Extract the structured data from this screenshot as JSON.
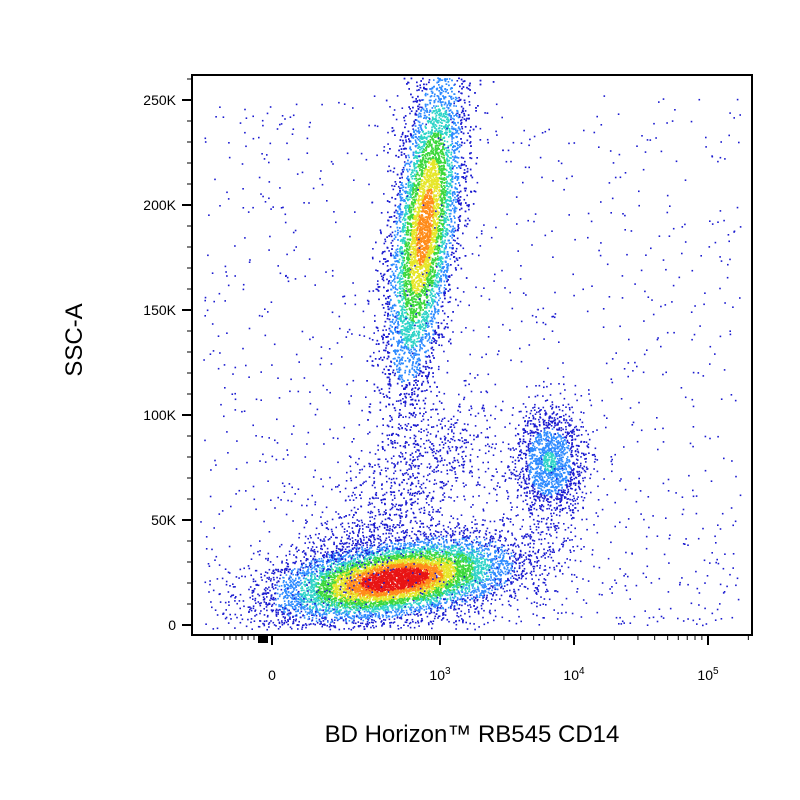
{
  "chart_data": {
    "type": "scatter",
    "style": "density-pseudocolor",
    "xlabel": "BD Horizon™ RB545  CD14",
    "ylabel": "SSC-A",
    "x_scale": "biexponential",
    "ylim": [
      0,
      262144
    ],
    "y_ticks": [
      {
        "value": 0,
        "label": "0"
      },
      {
        "value": 50000,
        "label": "50K"
      },
      {
        "value": 100000,
        "label": "100K"
      },
      {
        "value": 150000,
        "label": "150K"
      },
      {
        "value": 200000,
        "label": "200K"
      },
      {
        "value": 250000,
        "label": "250K"
      }
    ],
    "x_ticks": [
      {
        "value": 0,
        "base": "0",
        "exp": ""
      },
      {
        "value": 1000,
        "base": "10",
        "exp": "3"
      },
      {
        "value": 10000,
        "base": "10",
        "exp": "4"
      },
      {
        "value": 100000,
        "base": "10",
        "exp": "5"
      }
    ],
    "grid": false,
    "colormap": [
      "#1a1ad0",
      "#2e8bff",
      "#2fd4c8",
      "#3cd83c",
      "#e6e62a",
      "#ff8c1a",
      "#e81414"
    ],
    "populations": [
      {
        "x_center": 150,
        "y_center": 22000,
        "x_spread_decades": 0.45,
        "y_spread": 9000,
        "relative_density": 1.0
      },
      {
        "x_center": 520,
        "y_center": 190000,
        "x_spread_decades": 0.12,
        "y_spread": 40000,
        "relative_density": 0.8
      },
      {
        "x_center": 6500,
        "y_center": 78000,
        "x_spread_decades": 0.13,
        "y_spread": 13000,
        "relative_density": 0.3
      }
    ]
  }
}
